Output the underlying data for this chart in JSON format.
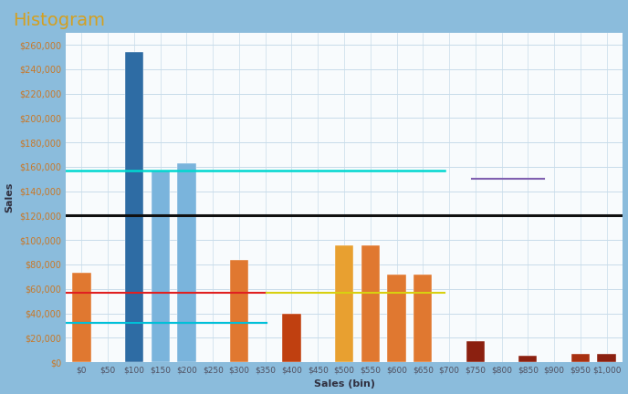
{
  "title": "Histogram",
  "title_color": "#d4a020",
  "title_fontsize": 14,
  "xlabel": "Sales (bin)",
  "ylabel": "Sales",
  "xlabel_fontsize": 8,
  "ylabel_fontsize": 8,
  "background_color": "#f0f4f8",
  "plot_bg_color": "#f8fbfd",
  "outer_border_color": "#8bbcdc",
  "grid_color": "#c8dcea",
  "categories": [
    "$0",
    "$50",
    "$100",
    "$150",
    "$200",
    "$250",
    "$300",
    "$350",
    "$400",
    "$450",
    "$500",
    "$550",
    "$600",
    "$650",
    "$700",
    "$750",
    "$800",
    "$850",
    "$900",
    "$950",
    "$1,000"
  ],
  "bar_values": [
    73000,
    0,
    254000,
    157000,
    163000,
    0,
    84000,
    0,
    40000,
    0,
    96000,
    96000,
    72000,
    72000,
    0,
    17000,
    0,
    5000,
    0,
    7000,
    7000
  ],
  "bar_colors": [
    "#e07830",
    "#ffffff",
    "#2e6ca4",
    "#7ab4dc",
    "#7ab4dc",
    "#ffffff",
    "#e07830",
    "#ffffff",
    "#c04010",
    "#ffffff",
    "#e8a030",
    "#e07830",
    "#e07830",
    "#e07830",
    "#ffffff",
    "#8b2010",
    "#ffffff",
    "#8b2010",
    "#ffffff",
    "#a83010",
    "#8b2010"
  ],
  "ylim": [
    0,
    270000
  ],
  "ytick_step": 20000,
  "ref_lines": [
    {
      "y": 157000,
      "color": "#00d8d0",
      "lw": 1.8,
      "xmin": 0.0,
      "xmax": 0.68
    },
    {
      "y": 120000,
      "color": "#101010",
      "lw": 2.2,
      "xmin": 0.0,
      "xmax": 1.0
    },
    {
      "y": 57000,
      "color": "#e02020",
      "lw": 1.5,
      "xmin": 0.0,
      "xmax": 0.36
    },
    {
      "y": 32000,
      "color": "#2060e0",
      "lw": 1.5,
      "xmin": 0.0,
      "xmax": 0.36
    },
    {
      "y": 57000,
      "color": "#d8d010",
      "lw": 1.5,
      "xmin": 0.36,
      "xmax": 0.68
    },
    {
      "y": 32000,
      "color": "#00c0d8",
      "lw": 1.5,
      "xmin": 0.0,
      "xmax": 0.36
    },
    {
      "y": 150000,
      "color": "#8060b0",
      "lw": 1.5,
      "xmin": 0.73,
      "xmax": 0.86
    }
  ],
  "bar_width": 0.7,
  "figsize": [
    6.88,
    4.32
  ],
  "dpi": 100
}
